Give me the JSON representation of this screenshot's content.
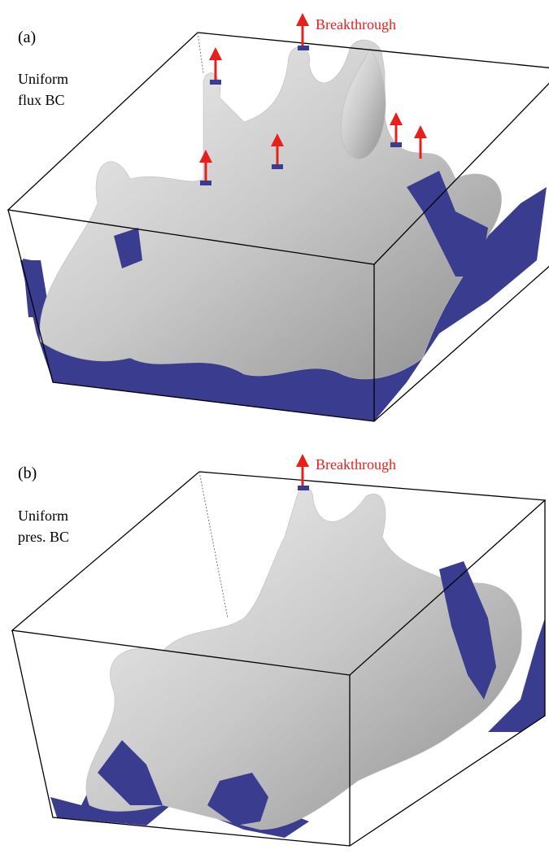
{
  "panels": [
    {
      "label": "(a)",
      "caption": [
        "Uniform",
        "flux BC"
      ],
      "annotation": "Breakthrough"
    },
    {
      "label": "(b)",
      "caption": [
        "Uniform",
        "pres. BC"
      ],
      "annotation": "Breakthrough"
    }
  ]
}
